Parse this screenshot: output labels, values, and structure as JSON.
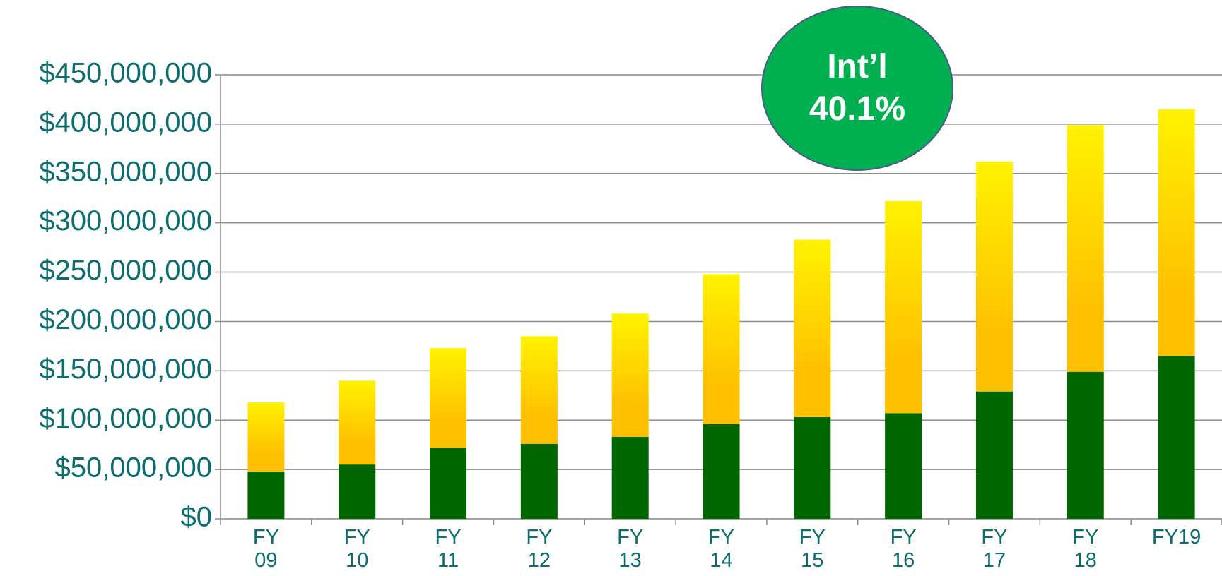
{
  "chart_data": {
    "type": "stacked_bar",
    "categories": [
      "FY\n09",
      "FY\n10",
      "FY\n11",
      "FY\n12",
      "FY\n13",
      "FY\n14",
      "FY\n15",
      "FY\n16",
      "FY\n17",
      "FY\n18",
      "FY19"
    ],
    "series": [
      {
        "color": "#006600",
        "values": [
          48000000,
          55000000,
          72000000,
          76000000,
          83000000,
          96000000,
          103000000,
          107000000,
          129000000,
          149000000,
          165000000
        ]
      },
      {
        "color": "#ffc000",
        "values": [
          70000000,
          85000000,
          101000000,
          109000000,
          125000000,
          152000000,
          180000000,
          215000000,
          233000000,
          250000000,
          250000000
        ]
      }
    ],
    "ylim": [
      0,
      450000000
    ],
    "yticks": [
      {
        "value": 0,
        "label": "$0"
      },
      {
        "value": 50000000,
        "label": "$50,000,000"
      },
      {
        "value": 100000000,
        "label": "$100,000,000"
      },
      {
        "value": 150000000,
        "label": "$150,000,000"
      },
      {
        "value": 200000000,
        "label": "$200,000,000"
      },
      {
        "value": 250000000,
        "label": "$250,000,000"
      },
      {
        "value": 300000000,
        "label": "$300,000,000"
      },
      {
        "value": 350000000,
        "label": "$350,000,000"
      },
      {
        "value": 400000000,
        "label": "$400,000,000"
      },
      {
        "value": 450000000,
        "label": "$450,000,000"
      }
    ],
    "grid": true,
    "annotation": "Int’l\n40.1%"
  }
}
